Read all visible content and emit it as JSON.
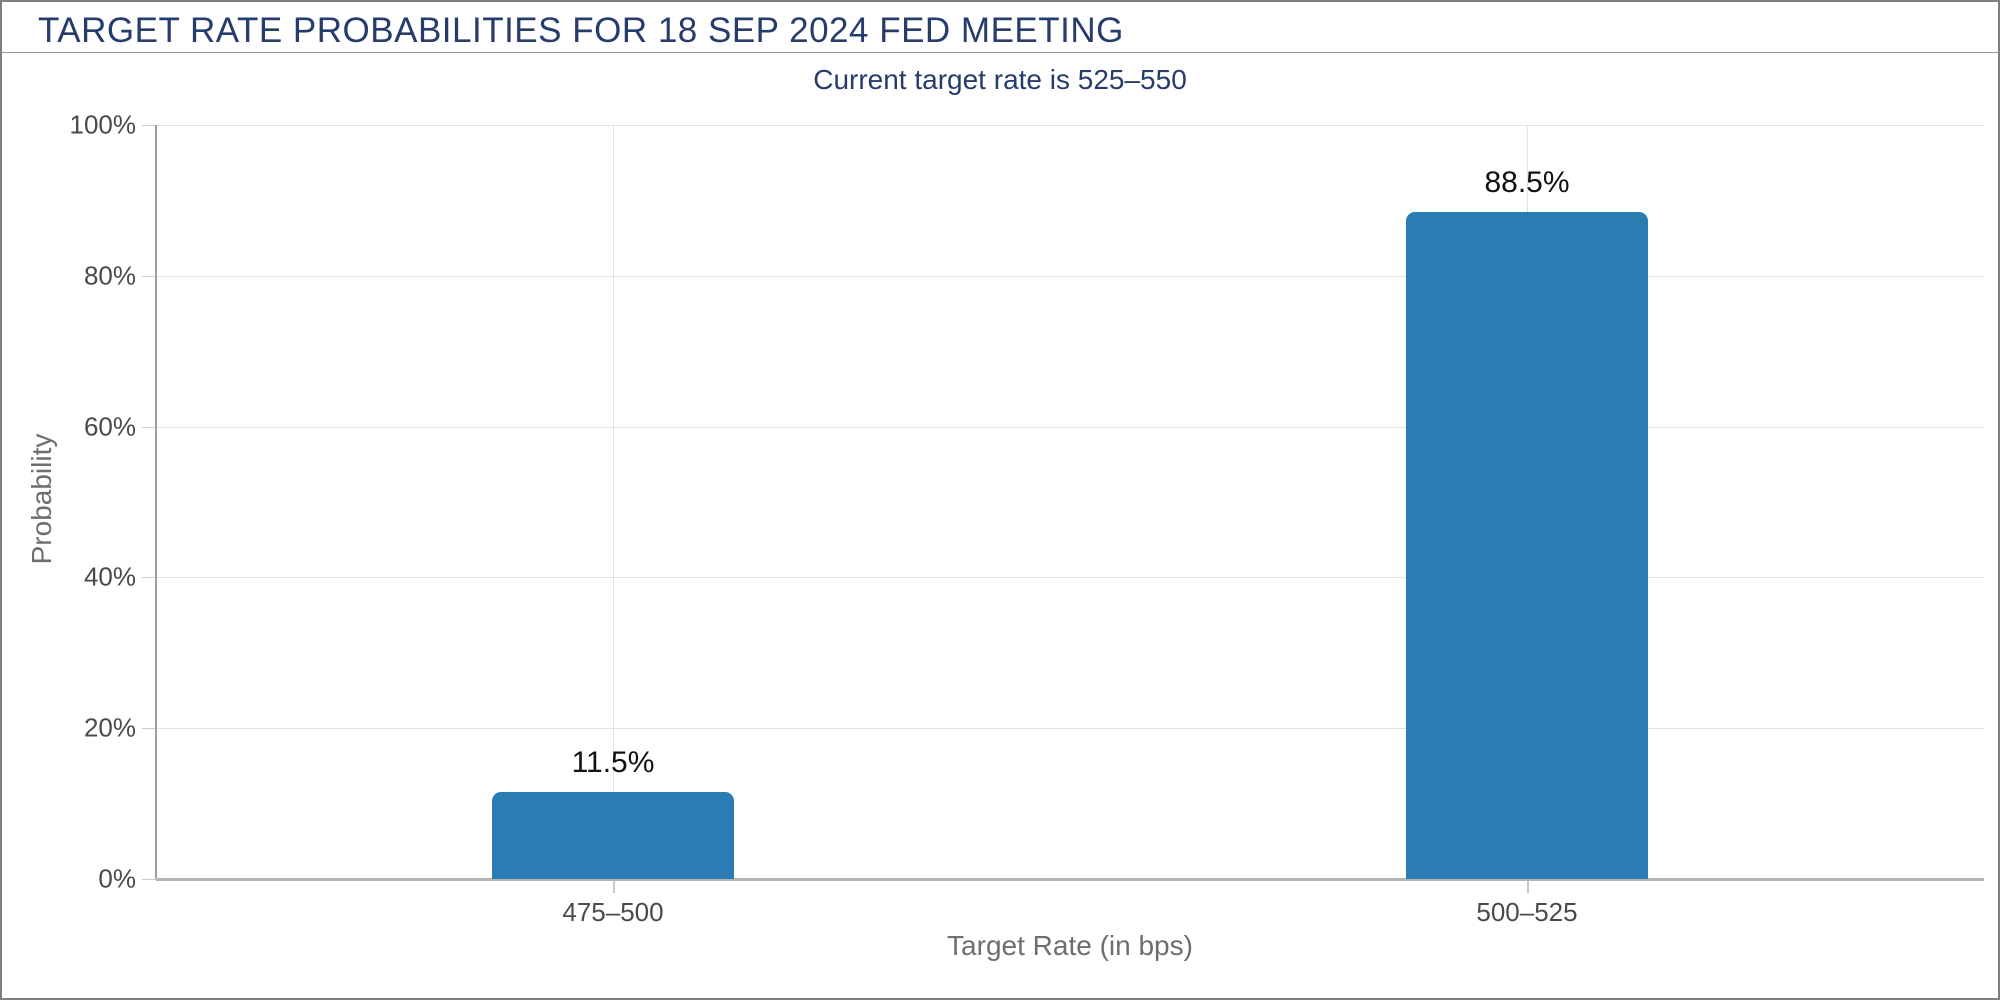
{
  "page": {
    "title": "TARGET RATE PROBABILITIES FOR 18 SEP 2024 FED MEETING",
    "subtitle": "Current target rate is 525–550"
  },
  "chart_data": {
    "type": "bar",
    "title": "TARGET RATE PROBABILITIES FOR 18 SEP 2024 FED MEETING",
    "subtitle": "Current target rate is 525–550",
    "categories": [
      "475–500",
      "500–525"
    ],
    "values": [
      11.5,
      88.5
    ],
    "value_labels": [
      "11.5%",
      "88.5%"
    ],
    "xlabel": "Target Rate (in bps)",
    "ylabel": "Probability",
    "ylim": [
      0,
      100
    ],
    "yticks": [
      0,
      20,
      40,
      60,
      80,
      100
    ],
    "ytick_labels": [
      "0%",
      "20%",
      "40%",
      "60%",
      "80%",
      "100%"
    ],
    "grid": true,
    "legend": "none",
    "bar_color": "#2b7cb3",
    "colors": {
      "title": "#263c6b",
      "subtitle": "#263c6b",
      "axis_text": "#4a4a4a",
      "axis_title": "#6e6e6e",
      "value_label": "#111111",
      "gridline": "#e2e2e2",
      "axis_line": "#9e9e9e",
      "baseline": "#b5b5b5"
    }
  }
}
